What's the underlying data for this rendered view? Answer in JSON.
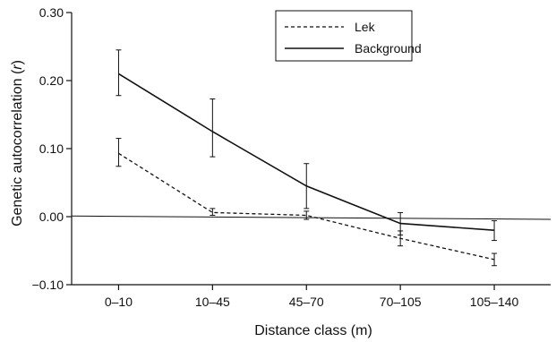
{
  "chart_data": {
    "type": "line",
    "title": "",
    "xlabel": "Distance class (m)",
    "ylabel_prefix": "Genetic autocorrelation (",
    "ylabel_var": "r",
    "ylabel_suffix": ")",
    "categories": [
      "0–10",
      "10–45",
      "45–70",
      "70–105",
      "105–140"
    ],
    "ylim": [
      -0.1,
      0.3
    ],
    "yticks": [
      -0.1,
      0.0,
      0.1,
      0.2,
      0.3
    ],
    "ytick_labels": [
      "−0.10",
      "0.00",
      "0.10",
      "0.20",
      "0.30"
    ],
    "grid": false,
    "legend_position": "top-center",
    "series": [
      {
        "name": "Lek",
        "style": "dashed",
        "color": "#111111",
        "values": [
          0.093,
          0.006,
          0.002,
          -0.032,
          -0.063
        ],
        "err_low": [
          0.074,
          0.002,
          -0.004,
          -0.043,
          -0.072
        ],
        "err_high": [
          0.115,
          0.012,
          0.008,
          -0.021,
          -0.054
        ]
      },
      {
        "name": "Background",
        "style": "solid",
        "color": "#111111",
        "values": [
          0.21,
          0.125,
          0.045,
          -0.01,
          -0.02
        ],
        "err_low": [
          0.178,
          0.088,
          0.012,
          -0.027,
          -0.035
        ],
        "err_high": [
          0.245,
          0.173,
          0.078,
          0.006,
          -0.006
        ]
      }
    ],
    "reference_line": {
      "start": [
        0.5,
        0.001
      ],
      "end": [
        5.6,
        -0.004
      ]
    }
  }
}
